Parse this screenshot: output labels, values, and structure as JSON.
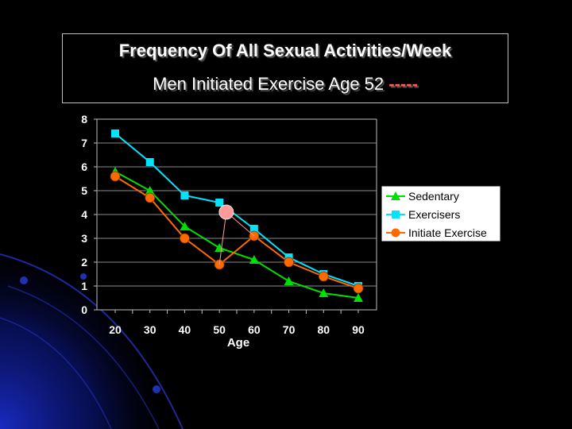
{
  "slide": {
    "title_line1": "Frequency Of All Sexual Activities/Week",
    "title_line2": "Men Initiated Exercise Age 52",
    "title_dashes": "-----"
  },
  "colors": {
    "background": "#000000",
    "deco_blue": "#1a2dcc",
    "dash_accent": "#ff5a5a"
  },
  "chart_data": {
    "type": "line",
    "x": [
      20,
      30,
      40,
      50,
      60,
      70,
      80,
      90
    ],
    "categories": [
      "20",
      "30",
      "40",
      "50",
      "60",
      "70",
      "80",
      "90"
    ],
    "xlabel": "Age",
    "ylabel": "",
    "ylim": [
      0,
      8
    ],
    "yticks": [
      0,
      1,
      2,
      3,
      4,
      5,
      6,
      7,
      8
    ],
    "grid": true,
    "legend_position": "right",
    "series": [
      {
        "name": "Sedentary",
        "color": "#00e000",
        "marker": "triangle",
        "values": [
          5.8,
          5.0,
          3.5,
          2.6,
          2.1,
          1.2,
          0.7,
          0.5
        ]
      },
      {
        "name": "Exercisers",
        "color": "#00e5ff",
        "marker": "square",
        "values": [
          7.4,
          6.2,
          4.8,
          4.5,
          3.4,
          2.2,
          1.5,
          1.0
        ]
      },
      {
        "name": "Initiate Exercise",
        "color": "#ff6a00",
        "marker": "circle",
        "values": [
          5.6,
          4.7,
          3.0,
          1.9,
          3.1,
          2.0,
          1.4,
          0.9
        ]
      }
    ],
    "annotation": {
      "label_marker": "pink-circle",
      "x": 52,
      "y": 4.1,
      "color": "#ff9a9a"
    }
  }
}
